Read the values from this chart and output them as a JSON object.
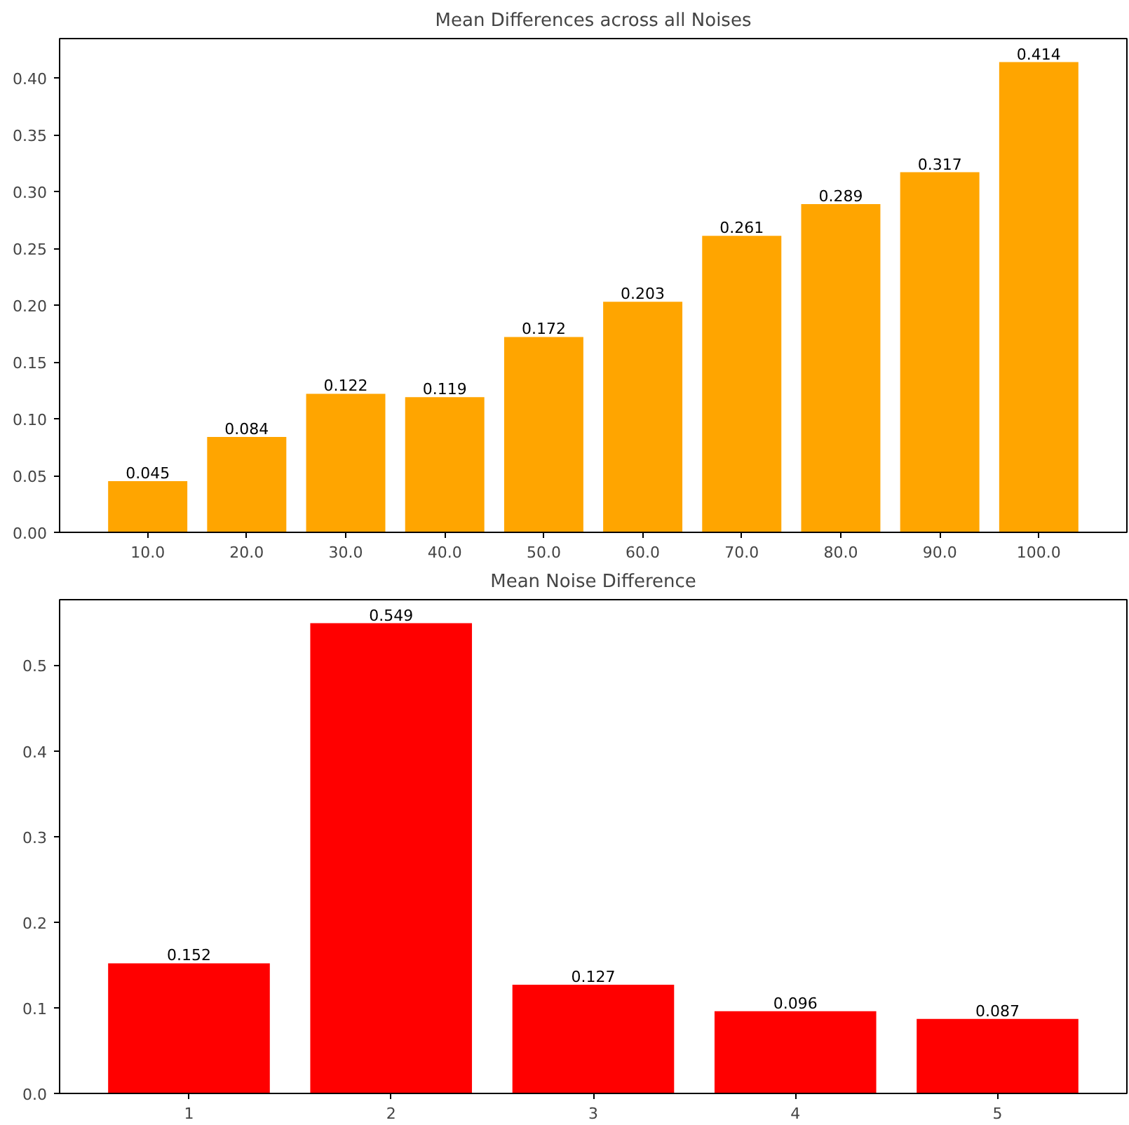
{
  "chart_data": [
    {
      "type": "bar",
      "title": "Mean Differences across all Noises",
      "categories": [
        "10.0",
        "20.0",
        "30.0",
        "40.0",
        "50.0",
        "60.0",
        "70.0",
        "80.0",
        "90.0",
        "100.0"
      ],
      "values": [
        0.045,
        0.084,
        0.122,
        0.119,
        0.172,
        0.203,
        0.261,
        0.289,
        0.317,
        0.414
      ],
      "color": "#ffa500",
      "data_labels": true,
      "grid": false,
      "ylim": [
        0,
        0.4347
      ],
      "yticks": [
        {
          "value": 0,
          "label": "0.00"
        },
        {
          "value": 0.05,
          "label": "0.05"
        },
        {
          "value": 0.1,
          "label": "0.10"
        },
        {
          "value": 0.15,
          "label": "0.15"
        },
        {
          "value": 0.2,
          "label": "0.20"
        },
        {
          "value": 0.25,
          "label": "0.25"
        },
        {
          "value": 0.3,
          "label": "0.30"
        },
        {
          "value": 0.35,
          "label": "0.35"
        },
        {
          "value": 0.4,
          "label": "0.40"
        }
      ]
    },
    {
      "type": "bar",
      "title": "Mean Noise Difference",
      "categories": [
        "1",
        "2",
        "3",
        "4",
        "5"
      ],
      "values": [
        0.152,
        0.549,
        0.127,
        0.096,
        0.087
      ],
      "color": "#ff0000",
      "data_labels": true,
      "grid": false,
      "ylim": [
        0,
        0.5765
      ],
      "yticks": [
        {
          "value": 0,
          "label": "0.0"
        },
        {
          "value": 0.1,
          "label": "0.1"
        },
        {
          "value": 0.2,
          "label": "0.2"
        },
        {
          "value": 0.3,
          "label": "0.3"
        },
        {
          "value": 0.4,
          "label": "0.4"
        },
        {
          "value": 0.5,
          "label": "0.5"
        }
      ]
    }
  ]
}
